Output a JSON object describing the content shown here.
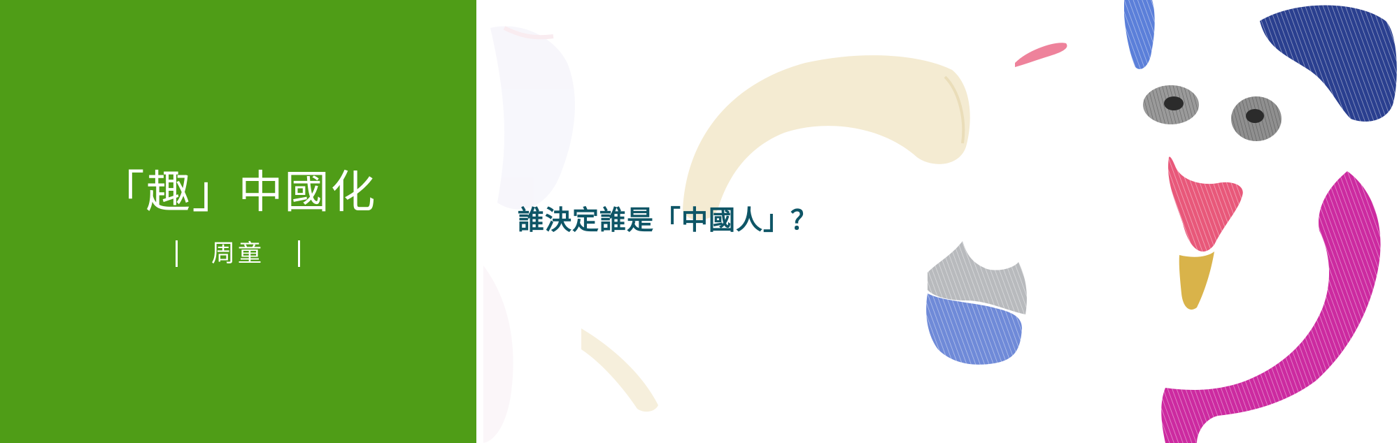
{
  "column": {
    "title": "「趣」中國化",
    "author": "周童"
  },
  "article": {
    "headline": "誰決定誰是「中國人」？"
  },
  "colors": {
    "panel_green": "#4f9d17",
    "headline_teal": "#0e5566",
    "magenta": "#cc2aa0",
    "blue": "#5b7fd9",
    "pink": "#e8587a",
    "cream": "#efe2bf"
  }
}
